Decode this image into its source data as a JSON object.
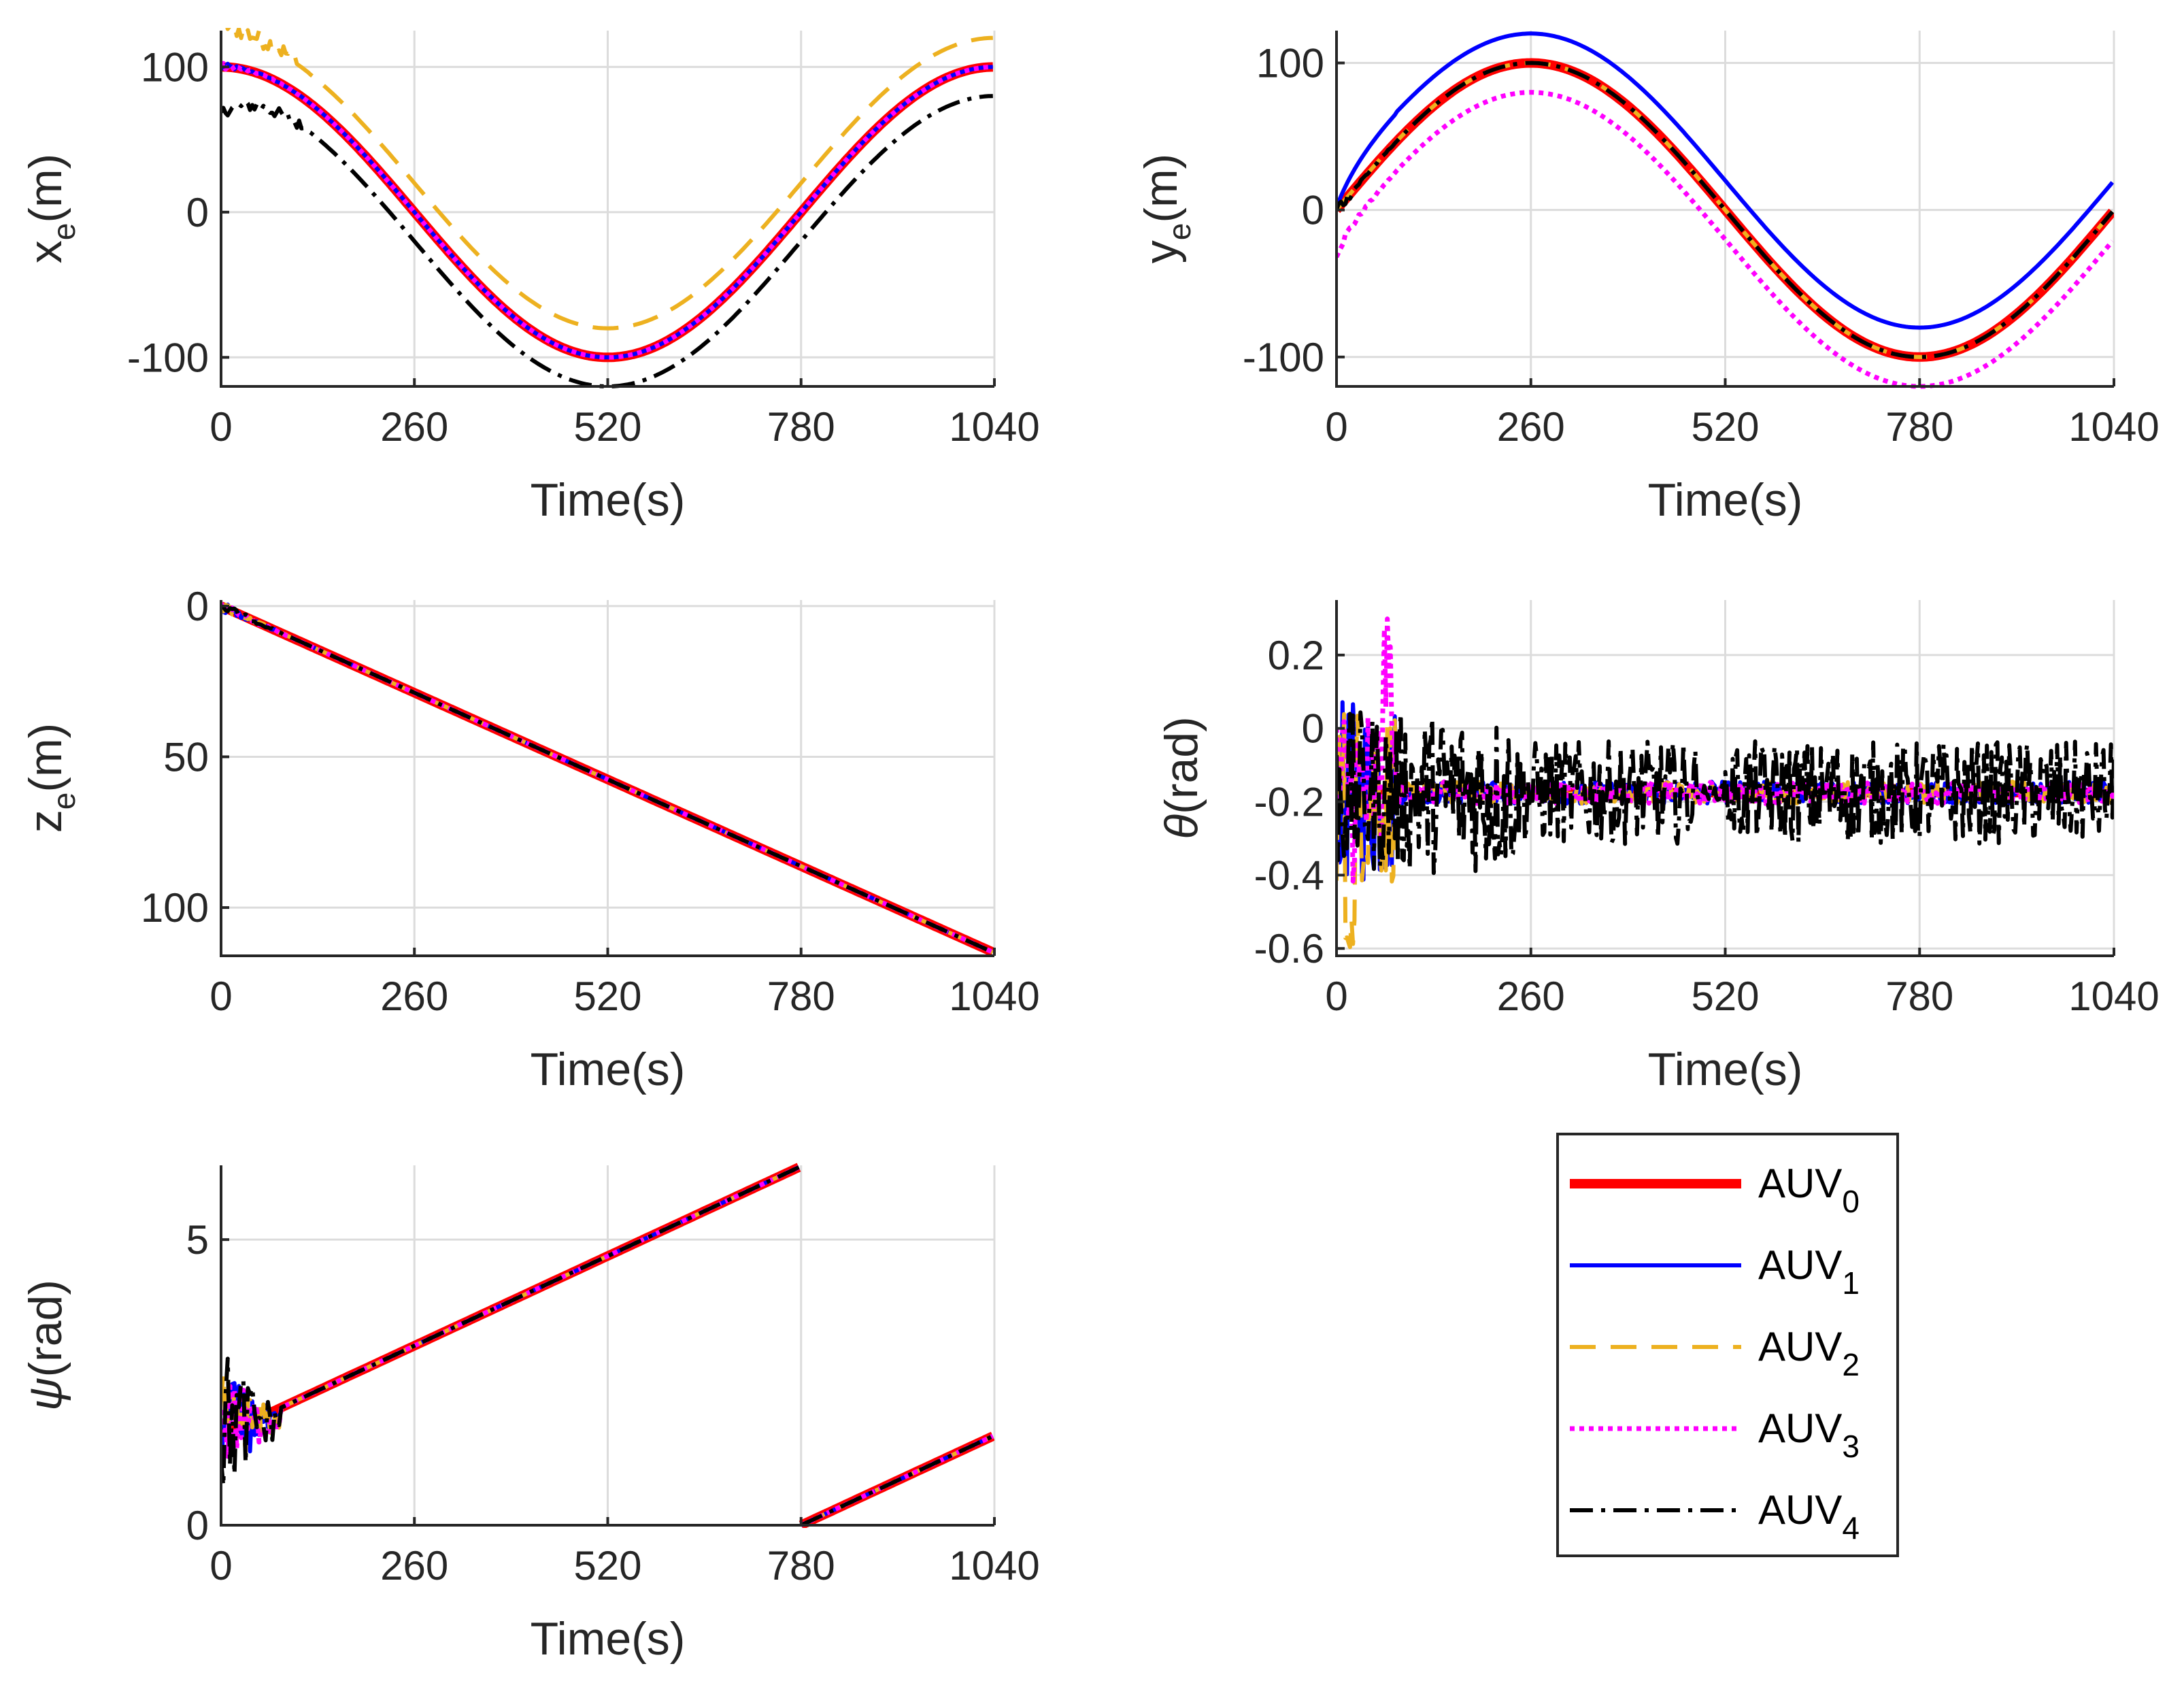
{
  "colors": {
    "AUV0": "#ff0000",
    "AUV1": "#0000ff",
    "AUV2": "#edb120",
    "AUV3": "#ff00ff",
    "AUV4": "#000000"
  },
  "legend": {
    "prefix": "AUV",
    "entries": [
      {
        "id": "AUV0",
        "sub": "0",
        "style": "solid-thick"
      },
      {
        "id": "AUV1",
        "sub": "1",
        "style": "solid"
      },
      {
        "id": "AUV2",
        "sub": "2",
        "style": "dashed"
      },
      {
        "id": "AUV3",
        "sub": "3",
        "style": "dotted"
      },
      {
        "id": "AUV4",
        "sub": "4",
        "style": "dashdot"
      }
    ]
  },
  "chart_data": [
    {
      "id": "xe",
      "type": "line",
      "ylabel": "x",
      "ylabel_sub": "e",
      "ylabel_unit": "(m)",
      "xlabel": "Time(s)",
      "xlim": [
        0,
        1040
      ],
      "ylim": [
        -120,
        125
      ],
      "y_reversed": false,
      "xticks": [
        0,
        260,
        520,
        780,
        1040
      ],
      "yticks": [
        -100,
        0,
        100
      ],
      "yticklabels": [
        "-100",
        "0",
        "100"
      ],
      "grid": true,
      "series": [
        {
          "name": "AUV0",
          "model": "x = 100*cos(2*pi*t/1040)"
        },
        {
          "name": "AUV1",
          "model": "x = 100*cos(2*pi*t/1040)"
        },
        {
          "name": "AUV2",
          "model": "x = 100*cos(2*pi*t/1040) + 20"
        },
        {
          "name": "AUV3",
          "model": "x = 100*cos(2*pi*t/1040)"
        },
        {
          "name": "AUV4",
          "model": "x = 100*cos(2*pi*t/1040) - 20"
        }
      ]
    },
    {
      "id": "ye",
      "type": "line",
      "ylabel": "y",
      "ylabel_sub": "e",
      "ylabel_unit": "(m)",
      "xlabel": "Time(s)",
      "xlim": [
        0,
        1040
      ],
      "ylim": [
        -120,
        122
      ],
      "y_reversed": false,
      "xticks": [
        0,
        260,
        520,
        780,
        1040
      ],
      "yticks": [
        -100,
        0,
        100
      ],
      "yticklabels": [
        "-100",
        "0",
        "100"
      ],
      "grid": true,
      "series": [
        {
          "name": "AUV0",
          "model": "y = 100*sin(2*pi*t/1040)"
        },
        {
          "name": "AUV1",
          "model": "y = 100*sin(2*pi*t/1040) + 20"
        },
        {
          "name": "AUV2",
          "model": "y = 100*sin(2*pi*t/1040)"
        },
        {
          "name": "AUV3",
          "model": "y = 100*sin(2*pi*t/1040) - 20"
        },
        {
          "name": "AUV4",
          "model": "y = 100*sin(2*pi*t/1040)"
        }
      ]
    },
    {
      "id": "ze",
      "type": "line",
      "ylabel": "z",
      "ylabel_sub": "e",
      "ylabel_unit": "(m)",
      "xlabel": "Time(s)",
      "xlim": [
        0,
        1040
      ],
      "ylim": [
        -2,
        116
      ],
      "y_reversed": true,
      "xticks": [
        0,
        260,
        520,
        780,
        1040
      ],
      "yticks": [
        0,
        50,
        100
      ],
      "yticklabels": [
        "0",
        "50",
        "100"
      ],
      "grid": true,
      "series": [
        {
          "name": "AUV0",
          "model": "z = 0.1106*t"
        },
        {
          "name": "AUV1",
          "model": "z = 0.1106*t"
        },
        {
          "name": "AUV2",
          "model": "z = 0.1106*t"
        },
        {
          "name": "AUV3",
          "model": "z = 0.1106*t"
        },
        {
          "name": "AUV4",
          "model": "z = 0.1106*t"
        }
      ]
    },
    {
      "id": "theta",
      "type": "line",
      "ylabel": "θ",
      "ylabel_sub": "",
      "ylabel_unit": "(rad)",
      "xlabel": "Time(s)",
      "xlim": [
        0,
        1040
      ],
      "ylim": [
        -0.62,
        0.35
      ],
      "y_reversed": false,
      "xticks": [
        0,
        260,
        520,
        780,
        1040
      ],
      "yticks": [
        0.2,
        0,
        -0.2,
        -0.4,
        -0.6
      ],
      "yticklabels": [
        "0.2",
        "0",
        "-0.2",
        "-0.4",
        "-0.6"
      ],
      "grid": true,
      "series": [
        {
          "name": "AUV0",
          "model": "theta = -0.175"
        },
        {
          "name": "AUV1",
          "model": "theta = -0.175 + noise"
        },
        {
          "name": "AUV2",
          "model": "theta = -0.175 + noise"
        },
        {
          "name": "AUV3",
          "model": "theta = -0.175 + noise"
        },
        {
          "name": "AUV4",
          "model": "theta = -0.175 + noise (amplitude ~0.25)"
        }
      ]
    },
    {
      "id": "psi",
      "type": "line",
      "ylabel": "ψ",
      "ylabel_sub": "",
      "ylabel_unit": "(rad)",
      "xlabel": "Time(s)",
      "xlim": [
        0,
        1040
      ],
      "ylim": [
        0,
        6.3
      ],
      "y_reversed": false,
      "xticks": [
        0,
        260,
        520,
        780,
        1040
      ],
      "yticks": [
        0,
        5
      ],
      "yticklabels": [
        "0",
        "5"
      ],
      "grid": true,
      "series": [
        {
          "name": "AUV0",
          "model": "psi = 1.5708 + 0.006042*t, wrapped at 2*pi (t≈780)"
        },
        {
          "name": "AUV1",
          "model": "psi = 1.5708 + 0.006042*t, wrapped at 2*pi"
        },
        {
          "name": "AUV2",
          "model": "psi = 1.5708 + 0.006042*t, wrapped at 2*pi"
        },
        {
          "name": "AUV3",
          "model": "psi = 1.5708 + 0.006042*t, wrapped at 2*pi"
        },
        {
          "name": "AUV4",
          "model": "psi = 1.5708 + 0.006042*t, wrapped at 2*pi"
        }
      ]
    }
  ]
}
